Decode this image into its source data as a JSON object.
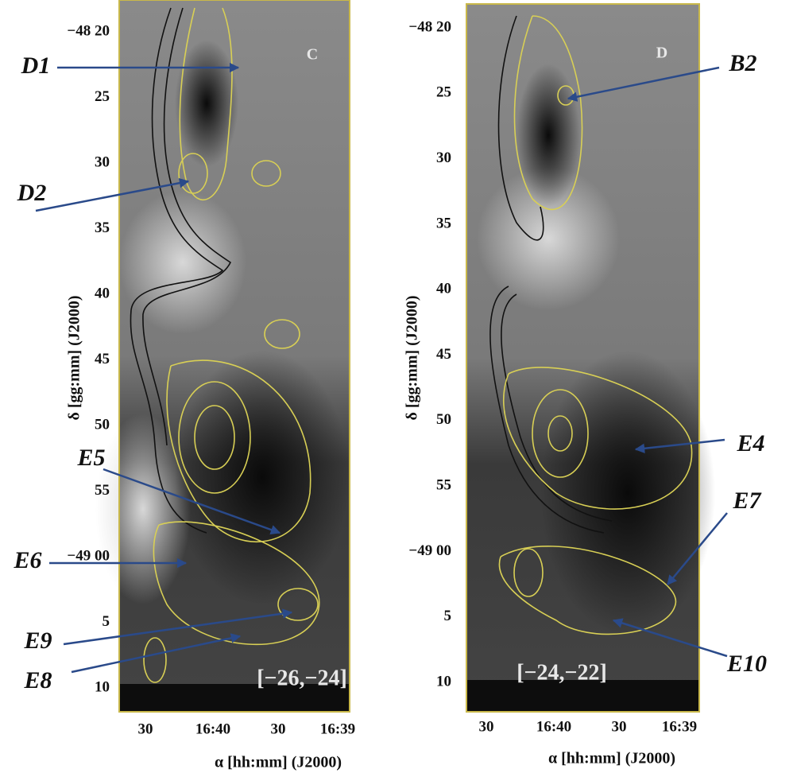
{
  "panels": [
    {
      "letter": "C",
      "range": "[−26,−24]",
      "y_ticks": [
        "−48 20",
        "25",
        "30",
        "35",
        "40",
        "45",
        "50",
        "55",
        "−49 00",
        "5",
        "10"
      ],
      "x_ticks": [
        "30",
        "16:40",
        "30",
        "16:39"
      ],
      "y_label": "δ  [gg:mm] (J2000)",
      "x_label": "α   [hh:mm] (J2000)",
      "annotations": [
        "D1",
        "D2",
        "E5",
        "E6",
        "E9",
        "E8"
      ]
    },
    {
      "letter": "D",
      "range": "[−24,−22]",
      "y_ticks": [
        "−48 20",
        "25",
        "30",
        "35",
        "40",
        "45",
        "50",
        "55",
        "−49 00",
        "5",
        "10"
      ],
      "x_ticks": [
        "30",
        "16:40",
        "30",
        "16:39"
      ],
      "y_label": "δ  [gg:mm] (J2000)",
      "x_label": "α   [hh:mm] (J2000)",
      "annotations": [
        "B2",
        "E4",
        "E7",
        "E10"
      ]
    }
  ]
}
